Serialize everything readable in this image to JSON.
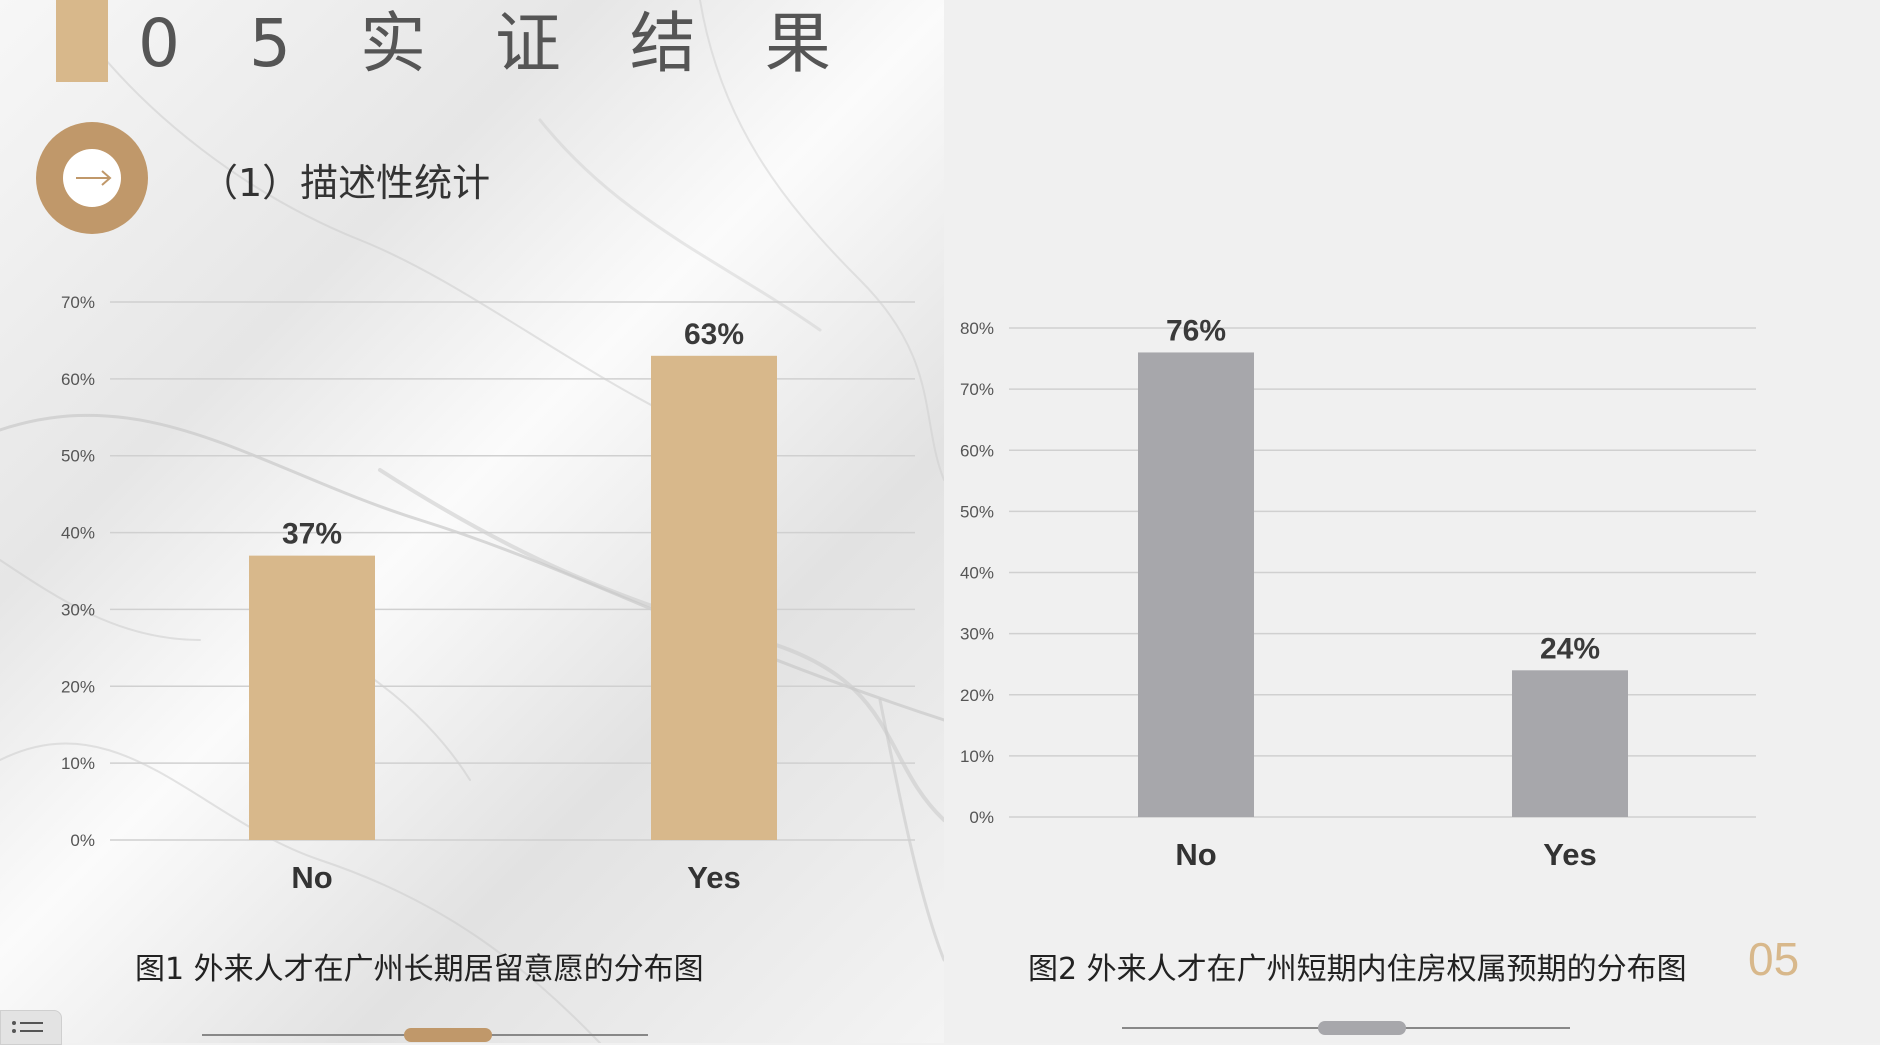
{
  "header": {
    "title": "0 5 实 证 结 果",
    "subtitle": "（1）描述性统计",
    "page_number": "05"
  },
  "colors": {
    "gold": "#d8b88b",
    "ring": "#c0986a",
    "gray_bar": "#a7a7ab",
    "label_dark": "#3a3a3a"
  },
  "icons": {
    "ring": "arrow-right-icon",
    "menu": "list-menu-icon"
  },
  "chart_data": [
    {
      "type": "bar",
      "categories": [
        "No",
        "Yes"
      ],
      "values": [
        37,
        63
      ],
      "value_labels": [
        "37%",
        "63%"
      ],
      "yticks": [
        "0%",
        "10%",
        "20%",
        "30%",
        "40%",
        "50%",
        "60%",
        "70%"
      ],
      "ylim": [
        0,
        70
      ],
      "grid": true,
      "color": "#d8b88b",
      "caption": "图1 外来人才在广州长期居留意愿的分布图"
    },
    {
      "type": "bar",
      "categories": [
        "No",
        "Yes"
      ],
      "values": [
        76,
        24
      ],
      "value_labels": [
        "76%",
        "24%"
      ],
      "yticks": [
        "0%",
        "10%",
        "20%",
        "30%",
        "40%",
        "50%",
        "60%",
        "70%",
        "80%"
      ],
      "ylim": [
        0,
        80
      ],
      "grid": true,
      "color": "#a7a7ab",
      "caption": "图2 外来人才在广州短期内住房权属预期的分布图"
    }
  ]
}
